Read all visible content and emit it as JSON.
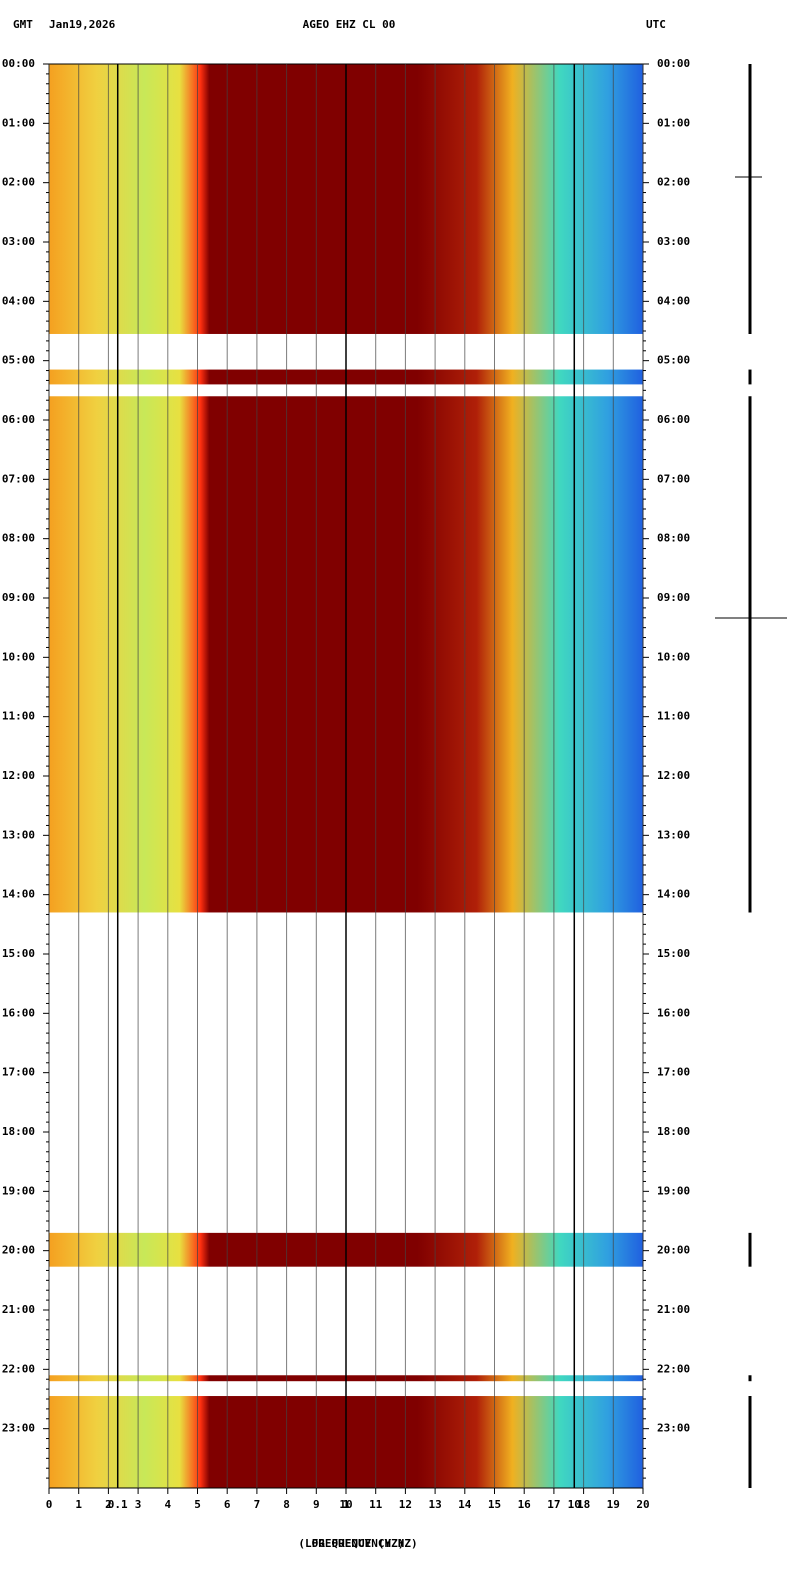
{
  "header": {
    "left": "GMT",
    "date": "Jan19,2026",
    "station": "AGEO EHZ CL 00",
    "right": "UTC"
  },
  "chart_data": {
    "type": "spectrogram",
    "xlabel": "FREQUENCY (HZ)",
    "log_xlabel": "(LOG FREQUENCY HZ)",
    "xlim": [
      0,
      20
    ],
    "xticks": [
      0,
      1,
      2,
      3,
      4,
      5,
      6,
      7,
      8,
      9,
      10,
      11,
      12,
      13,
      14,
      15,
      16,
      17,
      18,
      19,
      20
    ],
    "log_xlim": [
      0.05,
      20
    ],
    "log_xticks": [
      0.1,
      1,
      10
    ],
    "ylim": [
      0,
      24
    ],
    "yticks": [
      {
        "value": 0,
        "label": "00:00"
      },
      {
        "value": 1,
        "label": "01:00"
      },
      {
        "value": 2,
        "label": "02:00"
      },
      {
        "value": 3,
        "label": "03:00"
      },
      {
        "value": 4,
        "label": "04:00"
      },
      {
        "value": 5,
        "label": "05:00"
      },
      {
        "value": 6,
        "label": "06:00"
      },
      {
        "value": 7,
        "label": "07:00"
      },
      {
        "value": 8,
        "label": "08:00"
      },
      {
        "value": 9,
        "label": "09:00"
      },
      {
        "value": 10,
        "label": "10:00"
      },
      {
        "value": 11,
        "label": "11:00"
      },
      {
        "value": 12,
        "label": "12:00"
      },
      {
        "value": 13,
        "label": "13:00"
      },
      {
        "value": 14,
        "label": "14:00"
      },
      {
        "value": 15,
        "label": "15:00"
      },
      {
        "value": 16,
        "label": "16:00"
      },
      {
        "value": 17,
        "label": "17:00"
      },
      {
        "value": 18,
        "label": "18:00"
      },
      {
        "value": 19,
        "label": "19:00"
      },
      {
        "value": 20,
        "label": "20:00"
      },
      {
        "value": 21,
        "label": "21:00"
      },
      {
        "value": 22,
        "label": "22:00"
      },
      {
        "value": 23,
        "label": "23:00"
      }
    ],
    "segments": [
      [
        0,
        4.55
      ],
      [
        5.15,
        5.4
      ],
      [
        5.6,
        14.3
      ],
      [
        19.7,
        20.27
      ],
      [
        22.1,
        22.2
      ],
      [
        22.45,
        24
      ]
    ]
  }
}
